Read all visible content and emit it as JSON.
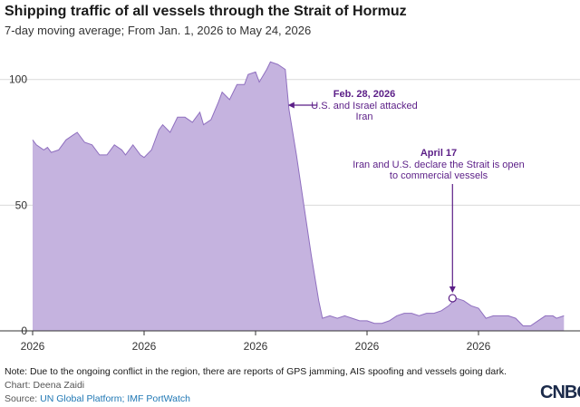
{
  "title": "Shipping traffic of all vessels through the Strait of Hormuz",
  "subtitle": "7-day moving average; From Jan. 1, 2026 to May 24, 2026",
  "note": "Note: Due to the ongoing conflict in the region, there are reports of GPS jamming, AIS spoofing and vessels going dark.",
  "credit": "Chart: Deena Zaidi",
  "source": {
    "prefix": "Source: ",
    "link": "UN Global Platform; IMF PortWatch"
  },
  "logo": "CNBC",
  "colors": {
    "area_fill": "#c5b3df",
    "area_line": "#8f6fbf",
    "annotation": "#5b1e87",
    "gridline": "#d9d9d9",
    "axis": "#333333"
  },
  "chart_data": {
    "type": "area",
    "title": "Shipping traffic of all vessels through the Strait of Hormuz",
    "subtitle": "7-day moving average; From Jan. 1, 2026 to May 24, 2026",
    "x_start": "2026-01-01",
    "x_end": "2026-05-24",
    "xlabel": "",
    "ylabel": "",
    "ylim": [
      0,
      110
    ],
    "yticks": [
      0,
      50,
      100
    ],
    "grid": true,
    "x_tick_labels": [
      "2026",
      "2026",
      "2026",
      "2026",
      "2026",
      "2026"
    ],
    "x_tick_dates": [
      "2026-01-01",
      "2026-01-31",
      "2026-03-02",
      "2026-04-01",
      "2026-05-01",
      "2026-05-31"
    ],
    "series": [
      {
        "values": [
          {
            "date": "2026-01-01",
            "y": 76
          },
          {
            "date": "2026-01-02",
            "y": 74
          },
          {
            "date": "2026-01-04",
            "y": 72
          },
          {
            "date": "2026-01-05",
            "y": 73
          },
          {
            "date": "2026-01-06",
            "y": 71
          },
          {
            "date": "2026-01-08",
            "y": 72
          },
          {
            "date": "2026-01-10",
            "y": 76
          },
          {
            "date": "2026-01-12",
            "y": 78
          },
          {
            "date": "2026-01-13",
            "y": 79
          },
          {
            "date": "2026-01-15",
            "y": 75
          },
          {
            "date": "2026-01-17",
            "y": 74
          },
          {
            "date": "2026-01-19",
            "y": 70
          },
          {
            "date": "2026-01-21",
            "y": 70
          },
          {
            "date": "2026-01-23",
            "y": 74
          },
          {
            "date": "2026-01-25",
            "y": 72
          },
          {
            "date": "2026-01-26",
            "y": 70
          },
          {
            "date": "2026-01-28",
            "y": 74
          },
          {
            "date": "2026-01-30",
            "y": 70
          },
          {
            "date": "2026-01-31",
            "y": 69
          },
          {
            "date": "2026-02-02",
            "y": 72
          },
          {
            "date": "2026-02-04",
            "y": 80
          },
          {
            "date": "2026-02-05",
            "y": 82
          },
          {
            "date": "2026-02-07",
            "y": 79
          },
          {
            "date": "2026-02-09",
            "y": 85
          },
          {
            "date": "2026-02-11",
            "y": 85
          },
          {
            "date": "2026-02-13",
            "y": 83
          },
          {
            "date": "2026-02-15",
            "y": 87
          },
          {
            "date": "2026-02-16",
            "y": 82
          },
          {
            "date": "2026-02-18",
            "y": 84
          },
          {
            "date": "2026-02-20",
            "y": 91
          },
          {
            "date": "2026-02-21",
            "y": 95
          },
          {
            "date": "2026-02-23",
            "y": 92
          },
          {
            "date": "2026-02-25",
            "y": 98
          },
          {
            "date": "2026-02-27",
            "y": 98
          },
          {
            "date": "2026-02-28",
            "y": 102
          },
          {
            "date": "2026-03-02",
            "y": 103
          },
          {
            "date": "2026-03-03",
            "y": 99
          },
          {
            "date": "2026-03-05",
            "y": 104
          },
          {
            "date": "2026-03-06",
            "y": 107
          },
          {
            "date": "2026-03-08",
            "y": 106
          },
          {
            "date": "2026-03-10",
            "y": 104
          },
          {
            "date": "2026-03-11",
            "y": 88
          },
          {
            "date": "2026-03-13",
            "y": 70
          },
          {
            "date": "2026-03-15",
            "y": 50
          },
          {
            "date": "2026-03-17",
            "y": 30
          },
          {
            "date": "2026-03-19",
            "y": 12
          },
          {
            "date": "2026-03-20",
            "y": 5
          },
          {
            "date": "2026-03-22",
            "y": 6
          },
          {
            "date": "2026-03-24",
            "y": 5
          },
          {
            "date": "2026-03-26",
            "y": 6
          },
          {
            "date": "2026-03-28",
            "y": 5
          },
          {
            "date": "2026-03-30",
            "y": 4
          },
          {
            "date": "2026-04-01",
            "y": 4
          },
          {
            "date": "2026-04-03",
            "y": 3
          },
          {
            "date": "2026-04-05",
            "y": 3
          },
          {
            "date": "2026-04-07",
            "y": 4
          },
          {
            "date": "2026-04-09",
            "y": 6
          },
          {
            "date": "2026-04-11",
            "y": 7
          },
          {
            "date": "2026-04-13",
            "y": 7
          },
          {
            "date": "2026-04-15",
            "y": 6
          },
          {
            "date": "2026-04-17",
            "y": 7
          },
          {
            "date": "2026-04-19",
            "y": 7
          },
          {
            "date": "2026-04-21",
            "y": 8
          },
          {
            "date": "2026-04-23",
            "y": 10
          },
          {
            "date": "2026-04-25",
            "y": 13
          },
          {
            "date": "2026-04-27",
            "y": 12
          },
          {
            "date": "2026-04-29",
            "y": 10
          },
          {
            "date": "2026-05-01",
            "y": 9
          },
          {
            "date": "2026-05-03",
            "y": 5
          },
          {
            "date": "2026-05-05",
            "y": 6
          },
          {
            "date": "2026-05-07",
            "y": 6
          },
          {
            "date": "2026-05-09",
            "y": 6
          },
          {
            "date": "2026-05-11",
            "y": 5
          },
          {
            "date": "2026-05-13",
            "y": 2
          },
          {
            "date": "2026-05-15",
            "y": 2
          },
          {
            "date": "2026-05-17",
            "y": 4
          },
          {
            "date": "2026-05-19",
            "y": 6
          },
          {
            "date": "2026-05-21",
            "y": 6
          },
          {
            "date": "2026-05-22",
            "y": 5
          },
          {
            "date": "2026-05-24",
            "y": 6
          }
        ]
      }
    ],
    "annotations": [
      {
        "date_label": "Feb. 28, 2026",
        "text_lines": [
          "U.S. and Israel attacked",
          "Iran"
        ],
        "x": "2026-03-10",
        "y": 88
      },
      {
        "date_label": "April 17",
        "text_lines": [
          "Iran and U.S. declare the Strait is open",
          "to commercial vessels"
        ],
        "x": "2026-04-24",
        "y": 13
      }
    ]
  }
}
